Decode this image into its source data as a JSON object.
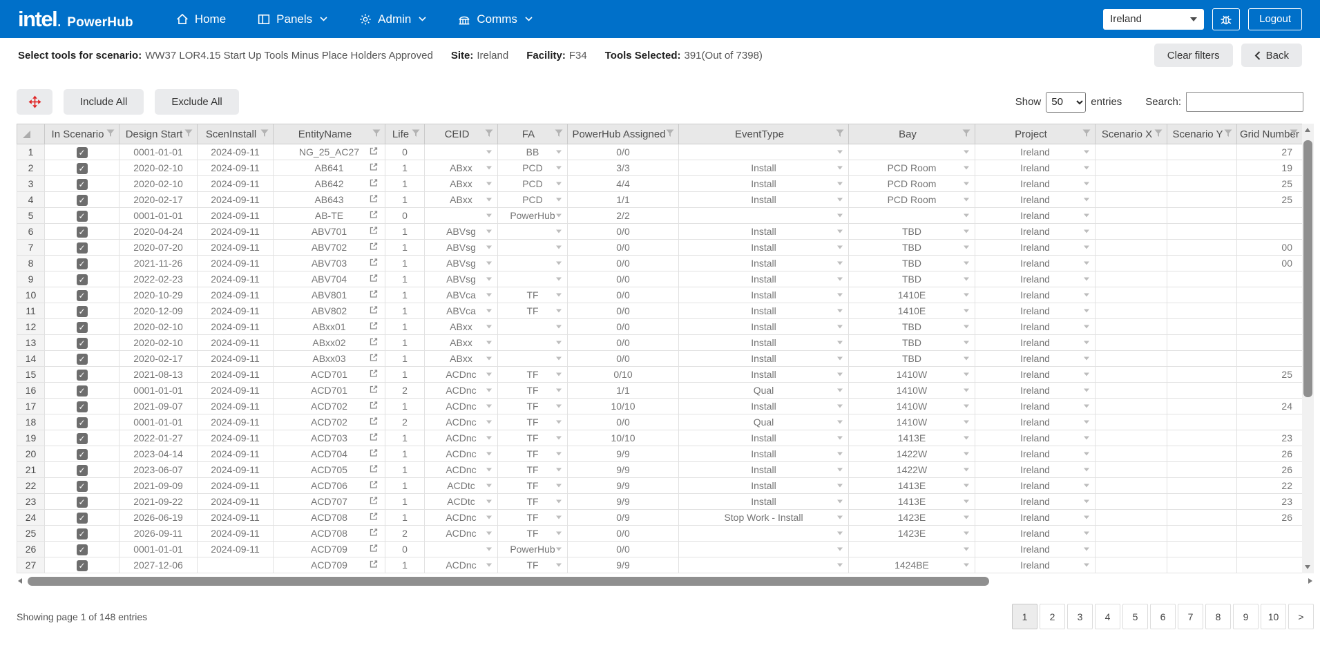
{
  "colors": {
    "brand_blue": "#0070c9",
    "header_gray": "#e8e8e8",
    "accent_red": "#e02020",
    "cell_text": "#757575",
    "scrollbar_thumb": "#8f8f8f"
  },
  "navbar": {
    "brand": {
      "logo": "intel",
      "dot": ".",
      "app": "PowerHub"
    },
    "items": [
      {
        "label": "Home",
        "icon": "home-icon",
        "has_caret": false
      },
      {
        "label": "Panels",
        "icon": "panels-icon",
        "has_caret": true
      },
      {
        "label": "Admin",
        "icon": "gear-icon",
        "has_caret": true
      },
      {
        "label": "Comms",
        "icon": "bank-icon",
        "has_caret": true
      }
    ],
    "site_select": {
      "value": "Ireland"
    },
    "bug_button_icon": "bug-icon",
    "logout_label": "Logout"
  },
  "subheader": {
    "scenario_label": "Select tools for scenario:",
    "scenario_value": "WW37 LOR4.15 Start Up Tools Minus Place Holders Approved",
    "site_label": "Site:",
    "site_value": "Ireland",
    "facility_label": "Facility:",
    "facility_value": "F34",
    "tools_label": "Tools Selected:",
    "tools_value": "391(Out of 7398)",
    "clear_filters_label": "Clear filters",
    "back_label": "Back"
  },
  "toolbar": {
    "move_button_icon": "crosshair-icon",
    "include_all_label": "Include All",
    "exclude_all_label": "Exclude All",
    "show_label": "Show",
    "page_size": "50",
    "entries_label": "entries",
    "search_label": "Search:",
    "search_value": ""
  },
  "table": {
    "columns": [
      {
        "label": "In Scenario"
      },
      {
        "label": "Design Start"
      },
      {
        "label": "ScenInstall"
      },
      {
        "label": "EntityName"
      },
      {
        "label": "Life"
      },
      {
        "label": "CEID"
      },
      {
        "label": "FA"
      },
      {
        "label": "PowerHub Assigned"
      },
      {
        "label": "EventType"
      },
      {
        "label": "Bay"
      },
      {
        "label": "Project"
      },
      {
        "label": "Scenario X"
      },
      {
        "label": "Scenario Y"
      },
      {
        "label": "Grid Number"
      }
    ],
    "rows": [
      {
        "n": "1",
        "in_scenario": true,
        "design_start": "0001-01-01",
        "scen_install": "2024-09-11",
        "entity": "NG_25_AC27",
        "life": "0",
        "ceid": "",
        "fa": "BB",
        "ph_assigned": "0/0",
        "event_type": "",
        "bay": "",
        "project": "Ireland",
        "scenario_x": "",
        "scenario_y": "",
        "grid": "27"
      },
      {
        "n": "2",
        "in_scenario": true,
        "design_start": "2020-02-10",
        "scen_install": "2024-09-11",
        "entity": "AB641",
        "life": "1",
        "ceid": "ABxx",
        "fa": "PCD",
        "ph_assigned": "3/3",
        "event_type": "Install",
        "bay": "PCD Room",
        "project": "Ireland",
        "scenario_x": "",
        "scenario_y": "",
        "grid": "19"
      },
      {
        "n": "3",
        "in_scenario": true,
        "design_start": "2020-02-10",
        "scen_install": "2024-09-11",
        "entity": "AB642",
        "life": "1",
        "ceid": "ABxx",
        "fa": "PCD",
        "ph_assigned": "4/4",
        "event_type": "Install",
        "bay": "PCD Room",
        "project": "Ireland",
        "scenario_x": "",
        "scenario_y": "",
        "grid": "25"
      },
      {
        "n": "4",
        "in_scenario": true,
        "design_start": "2020-02-17",
        "scen_install": "2024-09-11",
        "entity": "AB643",
        "life": "1",
        "ceid": "ABxx",
        "fa": "PCD",
        "ph_assigned": "1/1",
        "event_type": "Install",
        "bay": "PCD Room",
        "project": "Ireland",
        "scenario_x": "",
        "scenario_y": "",
        "grid": "25"
      },
      {
        "n": "5",
        "in_scenario": true,
        "design_start": "0001-01-01",
        "scen_install": "2024-09-11",
        "entity": "AB-TE",
        "life": "0",
        "ceid": "",
        "fa": "PowerHub",
        "ph_assigned": "2/2",
        "event_type": "",
        "bay": "",
        "project": "Ireland",
        "scenario_x": "",
        "scenario_y": "",
        "grid": ""
      },
      {
        "n": "6",
        "in_scenario": true,
        "design_start": "2020-04-24",
        "scen_install": "2024-09-11",
        "entity": "ABV701",
        "life": "1",
        "ceid": "ABVsg",
        "fa": "",
        "ph_assigned": "0/0",
        "event_type": "Install",
        "bay": "TBD",
        "project": "Ireland",
        "scenario_x": "",
        "scenario_y": "",
        "grid": ""
      },
      {
        "n": "7",
        "in_scenario": true,
        "design_start": "2020-07-20",
        "scen_install": "2024-09-11",
        "entity": "ABV702",
        "life": "1",
        "ceid": "ABVsg",
        "fa": "",
        "ph_assigned": "0/0",
        "event_type": "Install",
        "bay": "TBD",
        "project": "Ireland",
        "scenario_x": "",
        "scenario_y": "",
        "grid": "00"
      },
      {
        "n": "8",
        "in_scenario": true,
        "design_start": "2021-11-26",
        "scen_install": "2024-09-11",
        "entity": "ABV703",
        "life": "1",
        "ceid": "ABVsg",
        "fa": "",
        "ph_assigned": "0/0",
        "event_type": "Install",
        "bay": "TBD",
        "project": "Ireland",
        "scenario_x": "",
        "scenario_y": "",
        "grid": "00"
      },
      {
        "n": "9",
        "in_scenario": true,
        "design_start": "2022-02-23",
        "scen_install": "2024-09-11",
        "entity": "ABV704",
        "life": "1",
        "ceid": "ABVsg",
        "fa": "",
        "ph_assigned": "0/0",
        "event_type": "Install",
        "bay": "TBD",
        "project": "Ireland",
        "scenario_x": "",
        "scenario_y": "",
        "grid": ""
      },
      {
        "n": "10",
        "in_scenario": true,
        "design_start": "2020-10-29",
        "scen_install": "2024-09-11",
        "entity": "ABV801",
        "life": "1",
        "ceid": "ABVca",
        "fa": "TF",
        "ph_assigned": "0/0",
        "event_type": "Install",
        "bay": "1410E",
        "project": "Ireland",
        "scenario_x": "",
        "scenario_y": "",
        "grid": ""
      },
      {
        "n": "11",
        "in_scenario": true,
        "design_start": "2020-12-09",
        "scen_install": "2024-09-11",
        "entity": "ABV802",
        "life": "1",
        "ceid": "ABVca",
        "fa": "TF",
        "ph_assigned": "0/0",
        "event_type": "Install",
        "bay": "1410E",
        "project": "Ireland",
        "scenario_x": "",
        "scenario_y": "",
        "grid": ""
      },
      {
        "n": "12",
        "in_scenario": true,
        "design_start": "2020-02-10",
        "scen_install": "2024-09-11",
        "entity": "ABxx01",
        "life": "1",
        "ceid": "ABxx",
        "fa": "",
        "ph_assigned": "0/0",
        "event_type": "Install",
        "bay": "TBD",
        "project": "Ireland",
        "scenario_x": "",
        "scenario_y": "",
        "grid": ""
      },
      {
        "n": "13",
        "in_scenario": true,
        "design_start": "2020-02-10",
        "scen_install": "2024-09-11",
        "entity": "ABxx02",
        "life": "1",
        "ceid": "ABxx",
        "fa": "",
        "ph_assigned": "0/0",
        "event_type": "Install",
        "bay": "TBD",
        "project": "Ireland",
        "scenario_x": "",
        "scenario_y": "",
        "grid": ""
      },
      {
        "n": "14",
        "in_scenario": true,
        "design_start": "2020-02-17",
        "scen_install": "2024-09-11",
        "entity": "ABxx03",
        "life": "1",
        "ceid": "ABxx",
        "fa": "",
        "ph_assigned": "0/0",
        "event_type": "Install",
        "bay": "TBD",
        "project": "Ireland",
        "scenario_x": "",
        "scenario_y": "",
        "grid": ""
      },
      {
        "n": "15",
        "in_scenario": true,
        "design_start": "2021-08-13",
        "scen_install": "2024-09-11",
        "entity": "ACD701",
        "life": "1",
        "ceid": "ACDnc",
        "fa": "TF",
        "ph_assigned": "0/10",
        "event_type": "Install",
        "bay": "1410W",
        "project": "Ireland",
        "scenario_x": "",
        "scenario_y": "",
        "grid": "25"
      },
      {
        "n": "16",
        "in_scenario": true,
        "design_start": "0001-01-01",
        "scen_install": "2024-09-11",
        "entity": "ACD701",
        "life": "2",
        "ceid": "ACDnc",
        "fa": "TF",
        "ph_assigned": "1/1",
        "event_type": "Qual",
        "bay": "1410W",
        "project": "Ireland",
        "scenario_x": "",
        "scenario_y": "",
        "grid": ""
      },
      {
        "n": "17",
        "in_scenario": true,
        "design_start": "2021-09-07",
        "scen_install": "2024-09-11",
        "entity": "ACD702",
        "life": "1",
        "ceid": "ACDnc",
        "fa": "TF",
        "ph_assigned": "10/10",
        "event_type": "Install",
        "bay": "1410W",
        "project": "Ireland",
        "scenario_x": "",
        "scenario_y": "",
        "grid": "24"
      },
      {
        "n": "18",
        "in_scenario": true,
        "design_start": "0001-01-01",
        "scen_install": "2024-09-11",
        "entity": "ACD702",
        "life": "2",
        "ceid": "ACDnc",
        "fa": "TF",
        "ph_assigned": "0/0",
        "event_type": "Qual",
        "bay": "1410W",
        "project": "Ireland",
        "scenario_x": "",
        "scenario_y": "",
        "grid": ""
      },
      {
        "n": "19",
        "in_scenario": true,
        "design_start": "2022-01-27",
        "scen_install": "2024-09-11",
        "entity": "ACD703",
        "life": "1",
        "ceid": "ACDnc",
        "fa": "TF",
        "ph_assigned": "10/10",
        "event_type": "Install",
        "bay": "1413E",
        "project": "Ireland",
        "scenario_x": "",
        "scenario_y": "",
        "grid": "23"
      },
      {
        "n": "20",
        "in_scenario": true,
        "design_start": "2023-04-14",
        "scen_install": "2024-09-11",
        "entity": "ACD704",
        "life": "1",
        "ceid": "ACDnc",
        "fa": "TF",
        "ph_assigned": "9/9",
        "event_type": "Install",
        "bay": "1422W",
        "project": "Ireland",
        "scenario_x": "",
        "scenario_y": "",
        "grid": "26"
      },
      {
        "n": "21",
        "in_scenario": true,
        "design_start": "2023-06-07",
        "scen_install": "2024-09-11",
        "entity": "ACD705",
        "life": "1",
        "ceid": "ACDnc",
        "fa": "TF",
        "ph_assigned": "9/9",
        "event_type": "Install",
        "bay": "1422W",
        "project": "Ireland",
        "scenario_x": "",
        "scenario_y": "",
        "grid": "26"
      },
      {
        "n": "22",
        "in_scenario": true,
        "design_start": "2021-09-09",
        "scen_install": "2024-09-11",
        "entity": "ACD706",
        "life": "1",
        "ceid": "ACDtc",
        "fa": "TF",
        "ph_assigned": "9/9",
        "event_type": "Install",
        "bay": "1413E",
        "project": "Ireland",
        "scenario_x": "",
        "scenario_y": "",
        "grid": "22"
      },
      {
        "n": "23",
        "in_scenario": true,
        "design_start": "2021-09-22",
        "scen_install": "2024-09-11",
        "entity": "ACD707",
        "life": "1",
        "ceid": "ACDtc",
        "fa": "TF",
        "ph_assigned": "9/9",
        "event_type": "Install",
        "bay": "1413E",
        "project": "Ireland",
        "scenario_x": "",
        "scenario_y": "",
        "grid": "23"
      },
      {
        "n": "24",
        "in_scenario": true,
        "design_start": "2026-06-19",
        "scen_install": "2024-09-11",
        "entity": "ACD708",
        "life": "1",
        "ceid": "ACDnc",
        "fa": "TF",
        "ph_assigned": "0/9",
        "event_type": "Stop Work - Install",
        "bay": "1423E",
        "project": "Ireland",
        "scenario_x": "",
        "scenario_y": "",
        "grid": "26"
      },
      {
        "n": "25",
        "in_scenario": true,
        "design_start": "2026-09-11",
        "scen_install": "2024-09-11",
        "entity": "ACD708",
        "life": "2",
        "ceid": "ACDnc",
        "fa": "TF",
        "ph_assigned": "0/0",
        "event_type": "",
        "bay": "1423E",
        "project": "Ireland",
        "scenario_x": "",
        "scenario_y": "",
        "grid": ""
      },
      {
        "n": "26",
        "in_scenario": true,
        "design_start": "0001-01-01",
        "scen_install": "2024-09-11",
        "entity": "ACD709",
        "life": "0",
        "ceid": "",
        "fa": "PowerHub",
        "ph_assigned": "0/0",
        "event_type": "",
        "bay": "",
        "project": "Ireland",
        "scenario_x": "",
        "scenario_y": "",
        "grid": ""
      },
      {
        "n": "27",
        "in_scenario": true,
        "design_start": "2027-12-06",
        "scen_install": "",
        "entity": "ACD709",
        "life": "1",
        "ceid": "ACDnc",
        "fa": "TF",
        "ph_assigned": "9/9",
        "event_type": "",
        "bay": "1424BE",
        "project": "Ireland",
        "scenario_x": "",
        "scenario_y": "",
        "grid": ""
      }
    ]
  },
  "footer": {
    "summary": "Showing page 1 of 148 entries",
    "pages": [
      "1",
      "2",
      "3",
      "4",
      "5",
      "6",
      "7",
      "8",
      "9",
      "10"
    ],
    "next_label": ">",
    "active_page": "1"
  }
}
